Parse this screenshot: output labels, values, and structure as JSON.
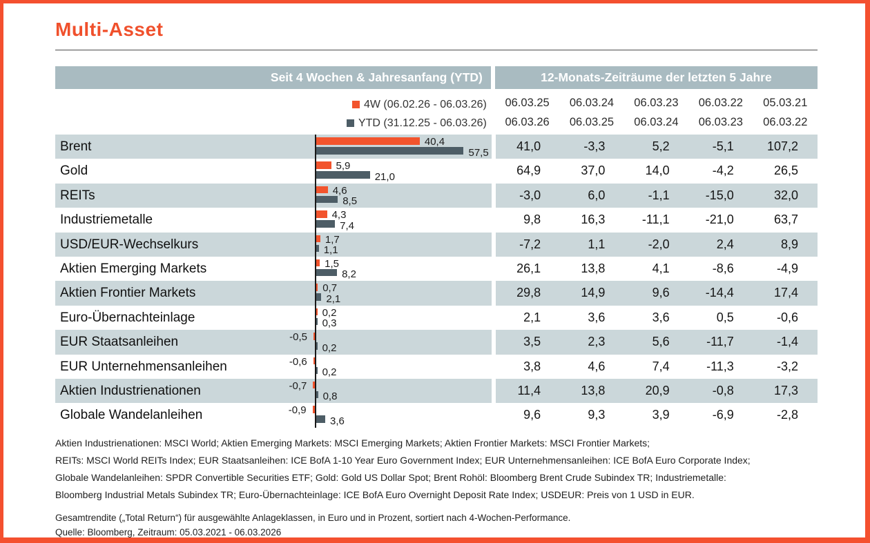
{
  "page": {
    "title": "Multi-Asset",
    "accent_color": "#f0502c",
    "frame_color": "#f4502f"
  },
  "table": {
    "header_left": "Seit 4 Wochen & Jahresanfang (YTD)",
    "header_right": "12-Monats-Zeiträume der letzten 5 Jahre",
    "legend": [
      {
        "label": "4W (06.02.26 - 06.03.26)",
        "color": "#f2542d"
      },
      {
        "label": "YTD (31.12.25 - 06.03.26)",
        "color": "#4d5d66"
      }
    ],
    "period_columns": [
      {
        "from": "06.03.25",
        "to": "06.03.26"
      },
      {
        "from": "06.03.24",
        "to": "06.03.25"
      },
      {
        "from": "06.03.23",
        "to": "06.03.24"
      },
      {
        "from": "06.03.22",
        "to": "06.03.23"
      },
      {
        "from": "05.03.21",
        "to": "06.03.22"
      }
    ],
    "rows": [
      {
        "label": "Brent",
        "w4": {
          "value": 40.4,
          "text": "40,4"
        },
        "ytd": {
          "value": 57.5,
          "text": "57,5"
        },
        "cells": [
          "41,0",
          "-3,3",
          "5,2",
          "-5,1",
          "107,2"
        ]
      },
      {
        "label": "Gold",
        "w4": {
          "value": 5.9,
          "text": "5,9"
        },
        "ytd": {
          "value": 21.0,
          "text": "21,0"
        },
        "cells": [
          "64,9",
          "37,0",
          "14,0",
          "-4,2",
          "26,5"
        ]
      },
      {
        "label": "REITs",
        "w4": {
          "value": 4.6,
          "text": "4,6"
        },
        "ytd": {
          "value": 8.5,
          "text": "8,5"
        },
        "cells": [
          "-3,0",
          "6,0",
          "-1,1",
          "-15,0",
          "32,0"
        ]
      },
      {
        "label": "Industriemetalle",
        "w4": {
          "value": 4.3,
          "text": "4,3"
        },
        "ytd": {
          "value": 7.4,
          "text": "7,4"
        },
        "cells": [
          "9,8",
          "16,3",
          "-11,1",
          "-21,0",
          "63,7"
        ]
      },
      {
        "label": "USD/EUR-Wechselkurs",
        "w4": {
          "value": 1.7,
          "text": "1,7"
        },
        "ytd": {
          "value": 1.1,
          "text": "1,1"
        },
        "cells": [
          "-7,2",
          "1,1",
          "-2,0",
          "2,4",
          "8,9"
        ]
      },
      {
        "label": "Aktien Emerging Markets",
        "w4": {
          "value": 1.5,
          "text": "1,5"
        },
        "ytd": {
          "value": 8.2,
          "text": "8,2"
        },
        "cells": [
          "26,1",
          "13,8",
          "4,1",
          "-8,6",
          "-4,9"
        ]
      },
      {
        "label": "Aktien Frontier Markets",
        "w4": {
          "value": 0.7,
          "text": "0,7"
        },
        "ytd": {
          "value": 2.1,
          "text": "2,1"
        },
        "cells": [
          "29,8",
          "14,9",
          "9,6",
          "-14,4",
          "17,4"
        ]
      },
      {
        "label": "Euro-Übernachteinlage",
        "w4": {
          "value": 0.2,
          "text": "0,2"
        },
        "ytd": {
          "value": 0.3,
          "text": "0,3"
        },
        "cells": [
          "2,1",
          "3,6",
          "3,6",
          "0,5",
          "-0,6"
        ]
      },
      {
        "label": "EUR Staatsanleihen",
        "w4": {
          "value": -0.5,
          "text": "-0,5"
        },
        "ytd": {
          "value": 0.2,
          "text": "0,2"
        },
        "cells": [
          "3,5",
          "2,3",
          "5,6",
          "-11,7",
          "-1,4"
        ]
      },
      {
        "label": "EUR Unternehmensanleihen",
        "w4": {
          "value": -0.6,
          "text": "-0,6"
        },
        "ytd": {
          "value": 0.2,
          "text": "0,2"
        },
        "cells": [
          "3,8",
          "4,6",
          "7,4",
          "-11,3",
          "-3,2"
        ]
      },
      {
        "label": "Aktien Industrienationen",
        "w4": {
          "value": -0.7,
          "text": "-0,7"
        },
        "ytd": {
          "value": 0.8,
          "text": "0,8"
        },
        "cells": [
          "11,4",
          "13,8",
          "20,9",
          "-0,8",
          "17,3"
        ]
      },
      {
        "label": "Globale Wandelanleihen",
        "w4": {
          "value": -0.9,
          "text": "-0,9"
        },
        "ytd": {
          "value": 3.6,
          "text": "3,6"
        },
        "cells": [
          "9,6",
          "9,3",
          "3,9",
          "-6,9",
          "-2,8"
        ]
      }
    ]
  },
  "chart_data": [
    {
      "type": "bar",
      "orientation": "horizontal",
      "title": "Seit 4 Wochen & Jahresanfang (YTD)",
      "categories": [
        "Brent",
        "Gold",
        "REITs",
        "Industriemetalle",
        "USD/EUR-Wechselkurs",
        "Aktien Emerging Markets",
        "Aktien Frontier Markets",
        "Euro-Übernachteinlage",
        "EUR Staatsanleihen",
        "EUR Unternehmensanleihen",
        "Aktien Industrienationen",
        "Globale Wandelanleihen"
      ],
      "series": [
        {
          "name": "4W (06.02.26 - 06.03.26)",
          "color": "#f2542d",
          "values": [
            40.4,
            5.9,
            4.6,
            4.3,
            1.7,
            1.5,
            0.7,
            0.2,
            -0.5,
            -0.6,
            -0.7,
            -0.9
          ]
        },
        {
          "name": "YTD (31.12.25 - 06.03.26)",
          "color": "#4d5d66",
          "values": [
            57.5,
            21.0,
            8.5,
            7.4,
            1.1,
            8.2,
            2.1,
            0.3,
            0.2,
            0.2,
            0.8,
            3.6
          ]
        }
      ],
      "xlim": [
        -5,
        70
      ],
      "grid": false,
      "legend_position": "top",
      "value_labels": true,
      "unit": "percent"
    },
    {
      "type": "table",
      "title": "12-Monats-Zeiträume der letzten 5 Jahre",
      "columns": [
        "06.03.25 - 06.03.26",
        "06.03.24 - 06.03.25",
        "06.03.23 - 06.03.24",
        "06.03.22 - 06.03.23",
        "05.03.21 - 06.03.22"
      ],
      "row_labels": [
        "Brent",
        "Gold",
        "REITs",
        "Industriemetalle",
        "USD/EUR-Wechselkurs",
        "Aktien Emerging Markets",
        "Aktien Frontier Markets",
        "Euro-Übernachteinlage",
        "EUR Staatsanleihen",
        "EUR Unternehmensanleihen",
        "Aktien Industrienationen",
        "Globale Wandelanleihen"
      ],
      "rows": [
        [
          41.0,
          -3.3,
          5.2,
          -5.1,
          107.2
        ],
        [
          64.9,
          37.0,
          14.0,
          -4.2,
          26.5
        ],
        [
          -3.0,
          6.0,
          -1.1,
          -15.0,
          32.0
        ],
        [
          9.8,
          16.3,
          -11.1,
          -21.0,
          63.7
        ],
        [
          -7.2,
          1.1,
          -2.0,
          2.4,
          8.9
        ],
        [
          26.1,
          13.8,
          4.1,
          -8.6,
          -4.9
        ],
        [
          29.8,
          14.9,
          9.6,
          -14.4,
          17.4
        ],
        [
          2.1,
          3.6,
          3.6,
          0.5,
          -0.6
        ],
        [
          3.5,
          2.3,
          5.6,
          -11.7,
          -1.4
        ],
        [
          3.8,
          4.6,
          7.4,
          -11.3,
          -3.2
        ],
        [
          11.4,
          13.8,
          20.9,
          -0.8,
          17.3
        ],
        [
          9.6,
          9.3,
          3.9,
          -6.9,
          -2.8
        ]
      ]
    }
  ],
  "footnotes": {
    "definitions": [
      "Aktien Industrienationen: MSCI World; Aktien Emerging Markets: MSCI Emerging Markets; Aktien Frontier Markets: MSCI Frontier Markets;",
      "REITs: MSCI World REITs Index; EUR Staatsanleihen: ICE BofA 1-10 Year Euro Government Index; EUR Unternehmensanleihen: ICE BofA Euro Corporate Index;",
      "Globale Wandelanleihen: SPDR Convertible Securities ETF; Gold: Gold US Dollar Spot; Brent Rohöl: Bloomberg Brent Crude Subindex TR; Industriemetalle:",
      "Bloomberg Industrial Metals Subindex TR; Euro-Übernachteinlage: ICE BofA Euro Overnight Deposit Rate Index; USDEUR: Preis von 1 USD in EUR."
    ],
    "note": "Gesamtrendite („Total Return“) für ausgewählte Anlageklassen, in Euro und in Prozent, sortiert nach 4-Wochen-Performance.",
    "source": "Quelle: Bloomberg, Zeitraum: 05.03.2021 - 06.03.2026"
  }
}
